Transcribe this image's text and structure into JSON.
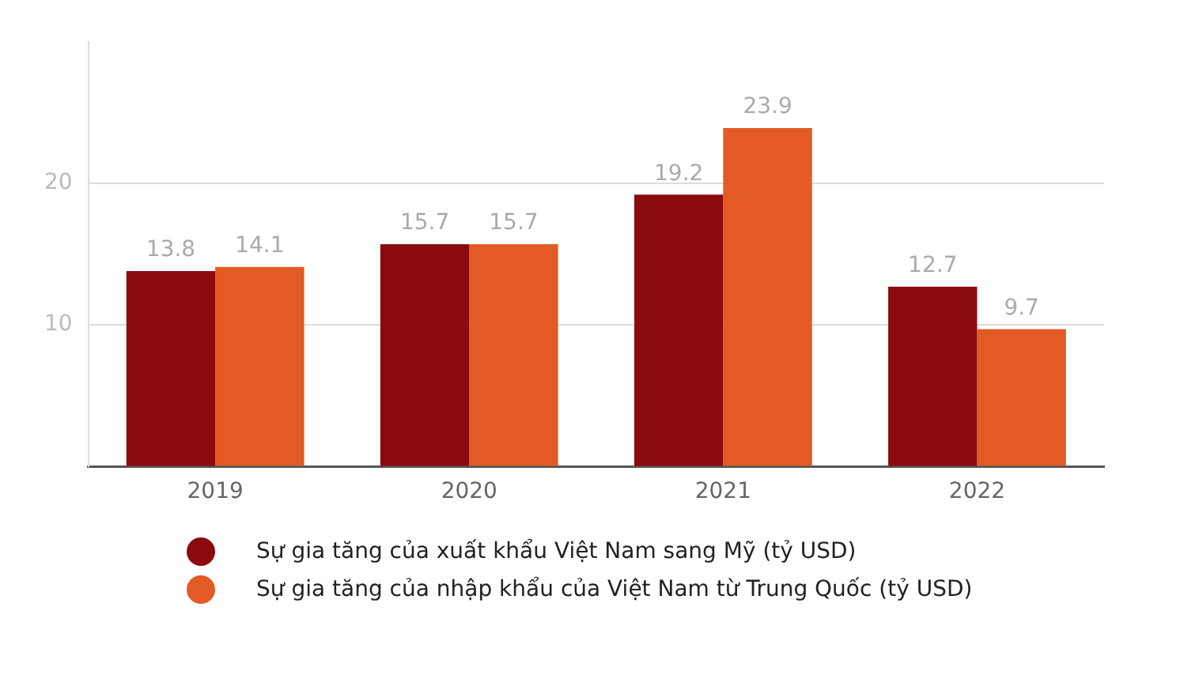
{
  "chart_data": {
    "type": "bar",
    "categories": [
      "2019",
      "2020",
      "2021",
      "2022"
    ],
    "series": [
      {
        "name": "Sự gia tăng của xuất khẩu Việt Nam sang Mỹ (tỷ USD)",
        "color": "#8b0a0e",
        "values": [
          13.8,
          15.7,
          19.2,
          12.7
        ]
      },
      {
        "name": "Sự gia tăng của nhập khẩu của Việt Nam từ Trung Quốc (tỷ USD)",
        "color": "#e35a24",
        "values": [
          14.1,
          15.7,
          23.9,
          9.7
        ]
      }
    ],
    "ylim": [
      0,
      30
    ],
    "yticks": [
      {
        "value": 0,
        "label": null
      },
      10,
      20
    ],
    "grid": "y",
    "legend": "bottom",
    "marker": "circle",
    "data_labels": true
  }
}
